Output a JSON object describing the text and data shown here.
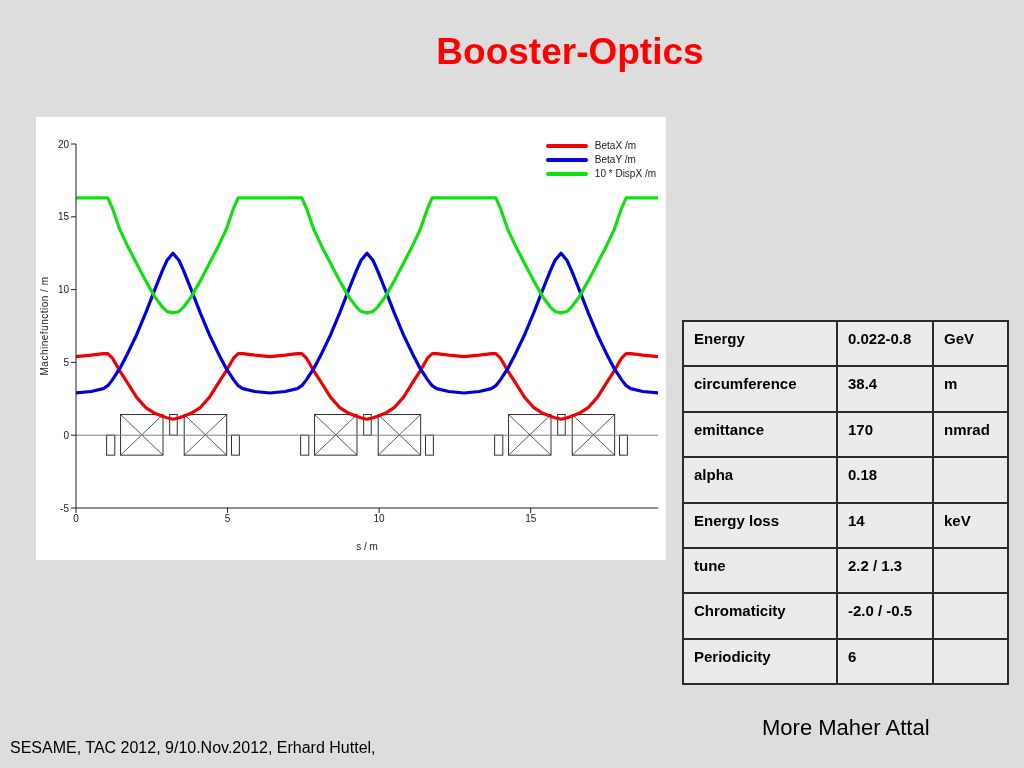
{
  "chart_data": [
    {
      "type": "line",
      "title": "Booster-Optics",
      "xlabel": "s / m",
      "ylabel": "Machinefunction / m",
      "x": [
        0,
        0.5,
        0.9,
        1.05,
        1.2,
        1.45,
        1.7,
        2,
        2.3,
        2.6,
        2.85,
        3,
        3.2,
        3.4,
        3.55,
        3.8,
        4.1,
        4.4,
        4.7,
        4.95,
        5.2,
        5.35,
        5.5,
        5.9,
        6.4,
        6.9,
        7.3,
        7.45,
        7.6,
        7.85,
        8.1,
        8.4,
        8.7,
        9,
        9.25,
        9.4,
        9.6,
        9.8,
        9.95,
        10.2,
        10.5,
        10.8,
        11.1,
        11.35,
        11.6,
        11.75,
        11.9,
        12.3,
        12.8,
        13.3,
        13.7,
        13.85,
        14,
        14.25,
        14.5,
        14.8,
        15.1,
        15.4,
        15.65,
        15.8,
        16,
        16.2,
        16.35,
        16.6,
        16.9,
        17.2,
        17.5,
        17.75,
        18,
        18.15,
        18.3,
        18.7,
        19.2
      ],
      "series": [
        {
          "name": "BetaX /m",
          "color": "#f00000",
          "values": [
            5.4,
            5.5,
            5.6,
            5.6,
            5.3,
            4.4,
            3.6,
            2.6,
            1.9,
            1.5,
            1.3,
            1.2,
            1.1,
            1.2,
            1.3,
            1.5,
            1.9,
            2.6,
            3.6,
            4.4,
            5.3,
            5.6,
            5.6,
            5.5,
            5.4,
            5.5,
            5.6,
            5.6,
            5.3,
            4.4,
            3.6,
            2.6,
            1.9,
            1.5,
            1.3,
            1.2,
            1.1,
            1.2,
            1.3,
            1.5,
            1.9,
            2.6,
            3.6,
            4.4,
            5.3,
            5.6,
            5.6,
            5.5,
            5.4,
            5.5,
            5.6,
            5.6,
            5.3,
            4.4,
            3.6,
            2.6,
            1.9,
            1.5,
            1.3,
            1.2,
            1.1,
            1.2,
            1.3,
            1.5,
            1.9,
            2.6,
            3.6,
            4.4,
            5.3,
            5.6,
            5.6,
            5.5,
            5.4
          ]
        },
        {
          "name": "BetaY /m",
          "color": "#0000d8",
          "values": [
            2.9,
            3,
            3.2,
            3.4,
            3.8,
            4.6,
            5.6,
            6.9,
            8.4,
            10,
            11.3,
            12,
            12.5,
            12,
            11.3,
            10,
            8.4,
            6.9,
            5.6,
            4.6,
            3.8,
            3.4,
            3.2,
            3,
            2.9,
            3,
            3.2,
            3.4,
            3.8,
            4.6,
            5.6,
            6.9,
            8.4,
            10,
            11.3,
            12,
            12.5,
            12,
            11.3,
            10,
            8.4,
            6.9,
            5.6,
            4.6,
            3.8,
            3.4,
            3.2,
            3,
            2.9,
            3,
            3.2,
            3.4,
            3.8,
            4.6,
            5.6,
            6.9,
            8.4,
            10,
            11.3,
            12,
            12.5,
            12,
            11.3,
            10,
            8.4,
            6.9,
            5.6,
            4.6,
            3.8,
            3.4,
            3.2,
            3,
            2.9
          ]
        },
        {
          "name": "10 * DispX /m",
          "color": "#10e010",
          "values": [
            16.3,
            16.3,
            16.3,
            16.3,
            15.6,
            14.1,
            13,
            11.8,
            10.6,
            9.5,
            8.8,
            8.5,
            8.4,
            8.5,
            8.8,
            9.5,
            10.6,
            11.8,
            13,
            14.1,
            15.6,
            16.3,
            16.3,
            16.3,
            16.3,
            16.3,
            16.3,
            16.3,
            15.6,
            14.1,
            13,
            11.8,
            10.6,
            9.5,
            8.8,
            8.5,
            8.4,
            8.5,
            8.8,
            9.5,
            10.6,
            11.8,
            13,
            14.1,
            15.6,
            16.3,
            16.3,
            16.3,
            16.3,
            16.3,
            16.3,
            16.3,
            15.6,
            14.1,
            13,
            11.8,
            10.6,
            9.5,
            8.8,
            8.5,
            8.4,
            8.5,
            8.8,
            9.5,
            10.6,
            11.8,
            13,
            14.1,
            15.6,
            16.3,
            16.3,
            16.3,
            16.3
          ]
        }
      ],
      "xlim": [
        0,
        19.2
      ],
      "xticks": [
        0,
        5,
        10,
        15
      ],
      "ylim": [
        -5,
        20
      ],
      "yticks": [
        -5,
        0,
        5,
        10,
        15,
        20
      ],
      "legend": "top right",
      "marker": "none",
      "ref_lines": [
        {
          "axis": "y",
          "value": 0,
          "color": "#808080"
        }
      ],
      "annotations": [
        "SESAME, TAC 2012, 9/10.Nov.2012, Erhard Huttel,",
        "More Maher Attal"
      ]
    },
    {
      "type": "other",
      "cell_labels": [
        [
          "Energy",
          "0.022-0.8",
          "GeV"
        ],
        [
          "circumference",
          "38.4",
          "m"
        ],
        [
          "emittance",
          "170",
          "nmrad"
        ],
        [
          "alpha",
          "0.18",
          null
        ],
        [
          "Energy loss",
          "14",
          "keV"
        ],
        [
          "tune",
          "2.2 / 1.3",
          null
        ],
        [
          "Chromaticity",
          "-2.0 / -0.5",
          null
        ],
        [
          "Periodicity",
          "6",
          null
        ]
      ]
    }
  ]
}
